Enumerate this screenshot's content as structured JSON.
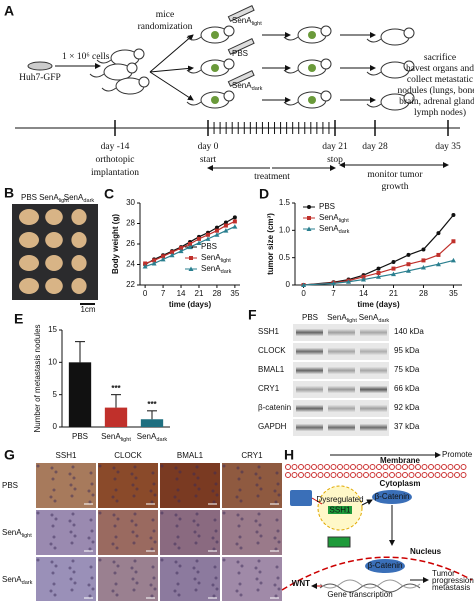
{
  "panels": {
    "A": {
      "label": "A",
      "randomization": [
        "mice",
        "randomization"
      ],
      "cells": "1 × 10⁶ cells",
      "cell_line": "Huh7-GFP",
      "groups": [
        {
          "name": "SenA",
          "subscript": "light"
        },
        {
          "name": "PBS"
        },
        {
          "name": "SenA",
          "subscript": "dark"
        }
      ],
      "endpoint": [
        "sacrifice",
        "havest organs and",
        "collect metastatic",
        "nodules (lungs, bones,",
        "brain, adrenal glands,",
        "lymph nodes)"
      ],
      "timeline": [
        {
          "day": "day -14",
          "notes": [
            "orthotopic",
            "implantation"
          ]
        },
        {
          "day": "day 0",
          "notes": [
            "start"
          ]
        },
        {
          "day": "day 21",
          "notes": [
            "stop"
          ]
        },
        {
          "day": "day 28"
        },
        {
          "day": "day 35"
        }
      ],
      "treatment": "treatment",
      "monitor": [
        "monitor tumor",
        "growth"
      ]
    },
    "B": {
      "label": "B",
      "columns": [
        {
          "name": "PBS"
        },
        {
          "name": "SenA",
          "subscript": "light"
        },
        {
          "name": "SenA",
          "subscript": "dark"
        }
      ],
      "scale": "1cm"
    },
    "F": {
      "label": "F",
      "columns": [
        {
          "name": "PBS"
        },
        {
          "name": "SenA",
          "subscript": "light"
        },
        {
          "name": "SenA",
          "subscript": "dark"
        }
      ],
      "rows": [
        {
          "protein": "SSH1",
          "size": "140 kDa"
        },
        {
          "protein": "CLOCK",
          "size": "95 kDa"
        },
        {
          "protein": "BMAL1",
          "size": "75 kDa"
        },
        {
          "protein": "CRY1",
          "size": "66 kDa"
        },
        {
          "protein": "β-catenin",
          "size": "92 kDa"
        },
        {
          "protein": "GAPDH",
          "size": "37 kDa"
        }
      ]
    },
    "G": {
      "label": "G",
      "columns": [
        "SSH1",
        "CLOCK",
        "BMAL1",
        "CRY1"
      ],
      "rows": [
        {
          "name": "PBS"
        },
        {
          "name": "SenA",
          "subscript": "light"
        },
        {
          "name": "SenA",
          "subscript": "dark"
        }
      ]
    },
    "H": {
      "label": "H",
      "membrane": "Membrane",
      "promote": "Promote",
      "cytoplasm": "Cytoplasm",
      "beta_catenin": "β-Catenin",
      "dysregulated": "Dysregulated",
      "ssh1": "SSH1",
      "nucleus": "Nucleus",
      "nuclear_beta_catenin": "β-Catenin",
      "wnt": "WNT",
      "gene": "Gene transcription",
      "outcome": [
        "Tumor",
        "progression and",
        "metastasis"
      ]
    }
  },
  "chart_data": [
    {
      "type": "line",
      "label": "C",
      "ylabel": "Body weight (g)",
      "xlabel": "time (days)",
      "x": [
        0,
        3.5,
        7,
        10.5,
        14,
        17.5,
        21,
        24.5,
        28,
        31.5,
        35
      ],
      "xlim": [
        -2,
        37
      ],
      "xticks": [
        0,
        7,
        14,
        21,
        28,
        35
      ],
      "ylim": [
        22,
        30
      ],
      "yticks": [
        22,
        24,
        26,
        28,
        30
      ],
      "legend": "lower right",
      "series": [
        {
          "name": "PBS",
          "color": "#111111",
          "values": [
            24,
            24.5,
            24.9,
            25.3,
            25.7,
            26.2,
            26.7,
            27.1,
            27.6,
            28.1,
            28.6
          ]
        },
        {
          "name": "SenA",
          "subscript": "light",
          "color": "#c0302b",
          "values": [
            24.1,
            24.4,
            24.8,
            25.2,
            25.6,
            26.0,
            26.5,
            26.9,
            27.3,
            27.8,
            28.2
          ]
        },
        {
          "name": "SenA",
          "subscript": "dark",
          "color": "#2a7f8f",
          "values": [
            23.8,
            24.1,
            24.5,
            24.9,
            25.3,
            25.7,
            26.1,
            26.5,
            26.9,
            27.3,
            27.7
          ]
        }
      ]
    },
    {
      "type": "line",
      "label": "D",
      "ylabel": "tumor size (cm³)",
      "xlabel": "time (days)",
      "x": [
        0,
        7,
        10.5,
        14,
        17.5,
        21,
        24.5,
        28,
        31.5,
        35
      ],
      "xlim": [
        -2,
        37
      ],
      "xticks": [
        0,
        7,
        14,
        21,
        28,
        35
      ],
      "ylim": [
        0,
        1.5
      ],
      "yticks": [
        0,
        0.5,
        {
          "value": 1,
          "label": "1.0"
        },
        1.5
      ],
      "legend": "upper left",
      "series": [
        {
          "name": "PBS",
          "color": "#111111",
          "values": [
            0,
            0.05,
            0.1,
            0.18,
            0.3,
            0.42,
            0.55,
            0.65,
            0.95,
            1.28
          ]
        },
        {
          "name": "SenA",
          "subscript": "light",
          "color": "#c0302b",
          "values": [
            0,
            0.04,
            0.08,
            0.15,
            0.22,
            0.3,
            0.38,
            0.45,
            0.55,
            0.8
          ]
        },
        {
          "name": "SenA",
          "subscript": "dark",
          "color": "#2a7f8f",
          "values": [
            0,
            0.03,
            0.06,
            0.1,
            0.15,
            0.2,
            0.26,
            0.32,
            0.38,
            0.45
          ]
        }
      ]
    },
    {
      "type": "bar",
      "label": "E",
      "ylabel": "Number of metastasis nodules",
      "categories": [
        "PBS",
        "SenA",
        "SenA"
      ],
      "category_subscripts": [
        null,
        "light",
        "dark"
      ],
      "values": [
        10,
        3,
        1.2
      ],
      "errors": [
        3.2,
        2,
        1.3
      ],
      "colors": [
        "#111111",
        "#c0302b",
        "#1f6f80"
      ],
      "annotations": [
        null,
        "***",
        "***"
      ],
      "ylim": [
        0,
        15
      ],
      "yticks": [
        0,
        5,
        10,
        15
      ]
    }
  ]
}
